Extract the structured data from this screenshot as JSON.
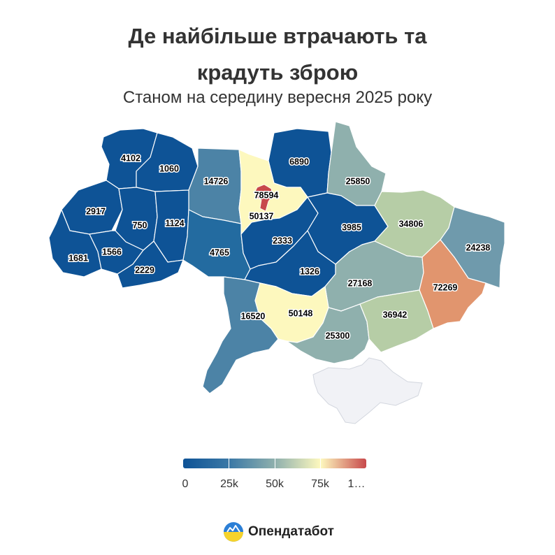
{
  "title": {
    "line1": "Де найбільше втрачають та",
    "line2": "крадуть зброю"
  },
  "subtitle": "Станом на середину вересня 2025 року",
  "colors": {
    "deep_blue": "#0e5396",
    "blue": "#236ba0",
    "steel_blue": "#4c83a6",
    "slate": "#6f9aac",
    "teal_gray": "#8fb0ad",
    "sage": "#b6cda6",
    "pale_yellow": "#fdf8be",
    "orange": "#e1956e",
    "crimson": "#c8494b",
    "crimea": "#f1f2f6"
  },
  "regions": [
    {
      "name": "Volyn",
      "value": "4102"
    },
    {
      "name": "Rivne",
      "value": "1060"
    },
    {
      "name": "Zhytomyr",
      "value": "14726"
    },
    {
      "name": "Kyiv city",
      "value": "78594"
    },
    {
      "name": "Kyiv oblast",
      "value": "50137"
    },
    {
      "name": "Chernihiv",
      "value": "6890"
    },
    {
      "name": "Sumy",
      "value": "25850"
    },
    {
      "name": "Lviv",
      "value": "2917"
    },
    {
      "name": "Ternopil",
      "value": "750"
    },
    {
      "name": "Khmelnytskyi",
      "value": "1124"
    },
    {
      "name": "Vinnytsia",
      "value": "4765"
    },
    {
      "name": "Cherkasy",
      "value": "2333"
    },
    {
      "name": "Poltava",
      "value": "3985"
    },
    {
      "name": "Kharkiv",
      "value": "34806"
    },
    {
      "name": "Luhansk",
      "value": "24238"
    },
    {
      "name": "Zakarpattia",
      "value": "1681"
    },
    {
      "name": "Ivano-Frankivsk",
      "value": "1566"
    },
    {
      "name": "Chernivtsi",
      "value": "2229"
    },
    {
      "name": "Kirovohrad",
      "value": "1326"
    },
    {
      "name": "Dnipropetrovsk",
      "value": "27168"
    },
    {
      "name": "Donetsk",
      "value": "72269"
    },
    {
      "name": "Odesa",
      "value": "16520"
    },
    {
      "name": "Mykolaiv",
      "value": "50148"
    },
    {
      "name": "Kherson",
      "value": "25300"
    },
    {
      "name": "Zaporizhzhia",
      "value": "36942"
    }
  ],
  "legend": {
    "ticks": [
      "0",
      "25k",
      "50k",
      "75k",
      "1…"
    ],
    "colors": [
      "#0e5396",
      "#3a78a6",
      "#8fb0ad",
      "#fdf8be",
      "#e1956e",
      "#c8494b"
    ]
  },
  "logo": {
    "name": "Опендатабот"
  }
}
